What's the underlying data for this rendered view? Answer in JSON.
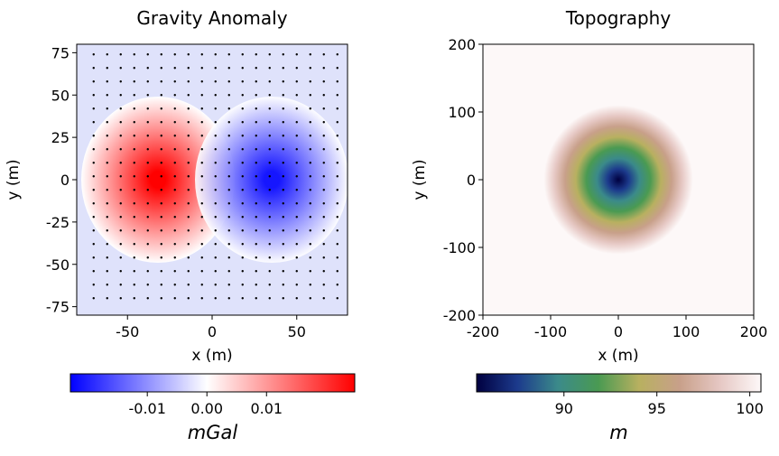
{
  "chart_data": [
    {
      "type": "contour",
      "title": "Gravity Anomaly",
      "xlabel": "x (m)",
      "ylabel": "y (m)",
      "xlim": [
        -80,
        80
      ],
      "ylim": [
        -80,
        80
      ],
      "xticks": [
        -50,
        0,
        50
      ],
      "yticks": [
        -75,
        -50,
        -25,
        0,
        25,
        50,
        75
      ],
      "colorbar": {
        "label": "mGal",
        "lim": [
          -0.0229,
          0.0248
        ],
        "ticks": [
          -0.01,
          {
            "value": 0,
            "label": "0.00"
          },
          0.01
        ],
        "colors": [
          "#0000ff",
          "#ffffff",
          "#ff0000"
        ]
      },
      "stations": {
        "x": [
          -70,
          -62,
          -54,
          -46,
          -38,
          -30,
          -22,
          -14,
          -6,
          2,
          10,
          18,
          26,
          34,
          42,
          50,
          58,
          66,
          74
        ],
        "y": [
          74,
          66,
          58,
          50,
          42,
          34,
          26,
          18,
          10,
          2,
          -6,
          -14,
          -22,
          -30,
          -38,
          -46,
          -54,
          -62,
          -70
        ]
      }
    },
    {
      "type": "contour",
      "title": "Topography",
      "xlabel": "x (m)",
      "ylabel": "y (m)",
      "xlim": [
        -200,
        200
      ],
      "ylim": [
        -200,
        200
      ],
      "xticks": [
        -200,
        -100,
        0,
        100,
        200
      ],
      "yticks": [
        -200,
        -100,
        0,
        100,
        200
      ],
      "colorbar": {
        "label": "m",
        "lim": [
          85.3,
          100.6
        ],
        "ticks": [
          90,
          95,
          100
        ],
        "colors": [
          "#000040",
          "#1c3a8c",
          "#3b8a8a",
          "#4a9a52",
          "#b8b060",
          "#c8a08a",
          "#e6c8c4",
          "#fdf8f8"
        ]
      }
    }
  ]
}
